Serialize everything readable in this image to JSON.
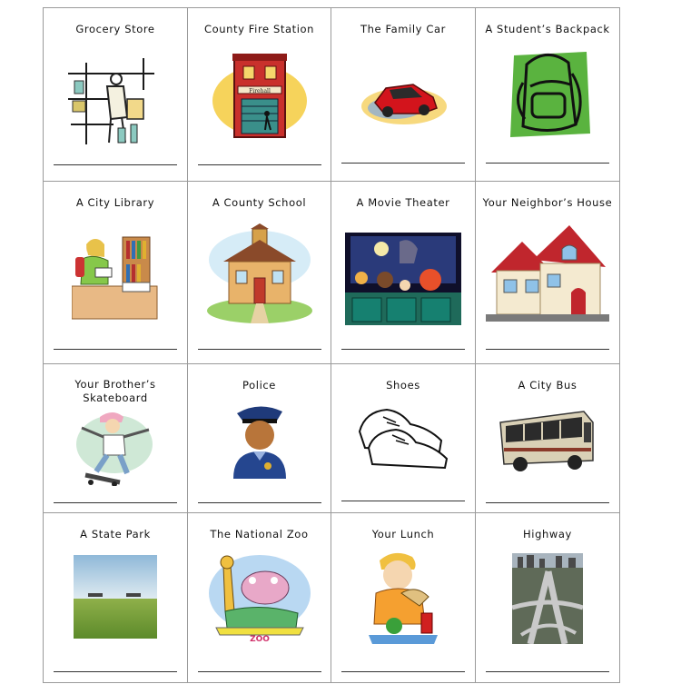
{
  "cards": [
    {
      "title": "Grocery Store",
      "icon": "grocery-store-icon"
    },
    {
      "title": "County Fire Station",
      "icon": "fire-station-icon"
    },
    {
      "title": "The Family Car",
      "icon": "car-icon"
    },
    {
      "title": "A Student’s Backpack",
      "icon": "backpack-icon"
    },
    {
      "title": "A City Library",
      "icon": "library-icon"
    },
    {
      "title": "A County School",
      "icon": "school-icon"
    },
    {
      "title": "A Movie Theater",
      "icon": "movie-theater-icon"
    },
    {
      "title": "Your Neighbor’s House",
      "icon": "house-icon"
    },
    {
      "title": "Your Brother’s Skateboard",
      "icon": "skateboard-icon"
    },
    {
      "title": "Police",
      "icon": "police-officer-icon"
    },
    {
      "title": "Shoes",
      "icon": "shoes-icon"
    },
    {
      "title": "A City Bus",
      "icon": "bus-icon"
    },
    {
      "title": "A State Park",
      "icon": "park-icon"
    },
    {
      "title": "The National Zoo",
      "icon": "zoo-icon"
    },
    {
      "title": "Your Lunch",
      "icon": "lunch-icon"
    },
    {
      "title": "Highway",
      "icon": "highway-icon"
    }
  ],
  "zoo_sign": "ZOO",
  "fire_station_sign": "Firehall"
}
